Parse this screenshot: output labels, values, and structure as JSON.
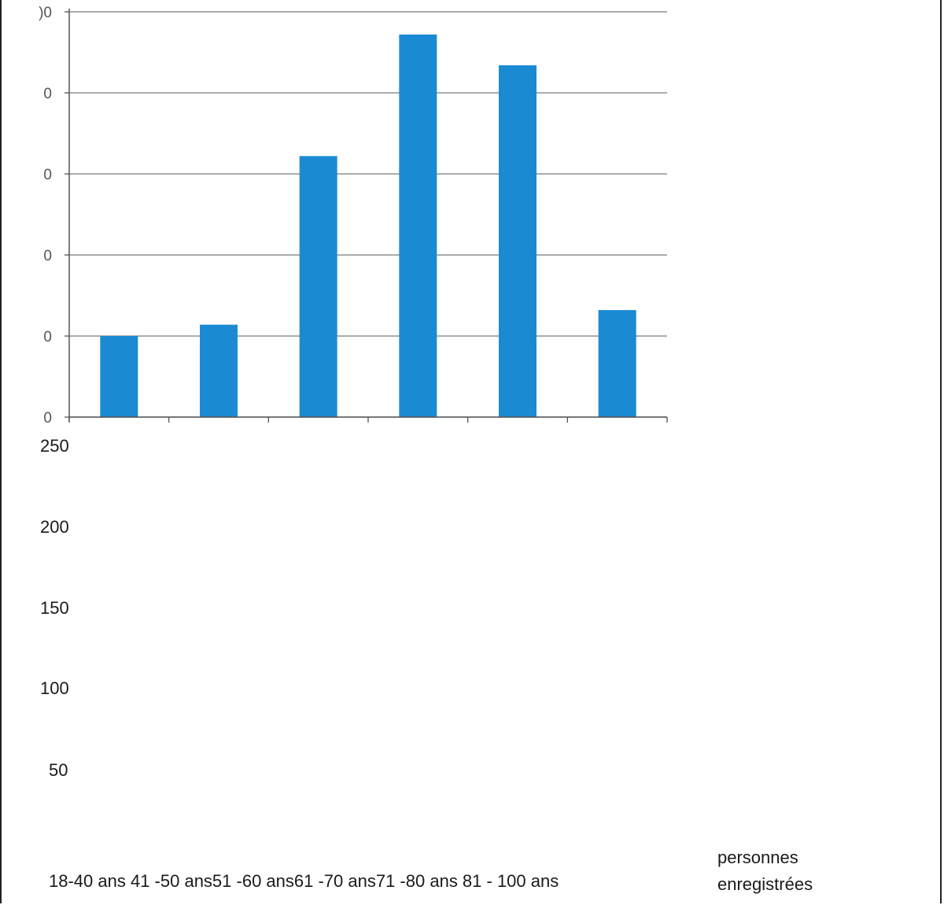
{
  "chart_data": {
    "type": "bar",
    "categories": [
      "18-40 ans",
      "41 -50 ans",
      "51 -60 ans",
      "61 -70 ans",
      "71 -80 ans",
      "81 - 100 ans"
    ],
    "values": [
      50,
      57,
      161,
      236,
      217,
      66
    ],
    "ylim": [
      0,
      250
    ],
    "y_ticks": [
      0,
      50,
      100,
      150,
      200,
      250
    ],
    "y_tick_labels_cropped": [
      "0",
      "0",
      "0",
      "0",
      "0",
      ")0"
    ],
    "y_tick_labels_printed": [
      "250",
      "200",
      "150",
      "100",
      "50"
    ],
    "categories_line": "18-40 ans 41 -50 ans51 -60 ans61 -70 ans71 -80 ans 81 - 100 ans",
    "series_label_lines": [
      "personnes",
      "enregistrées"
    ],
    "grid": true,
    "bar_color": "#1a8bd3"
  }
}
